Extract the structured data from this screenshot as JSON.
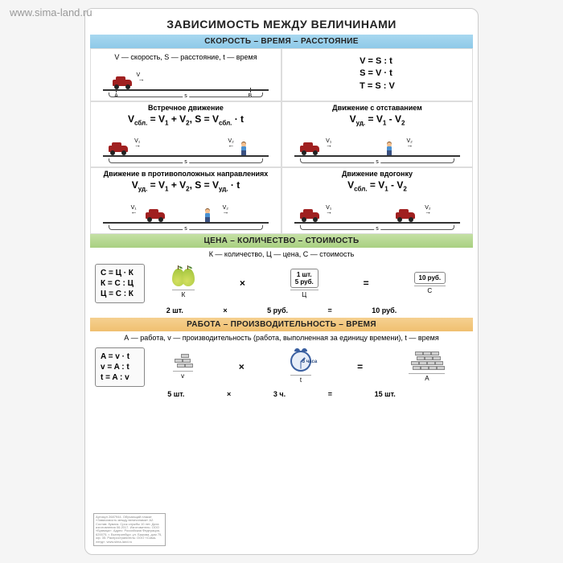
{
  "watermark": "www.sima-land.ru",
  "title": "ЗАВИСИМОСТЬ МЕЖДУ ВЕЛИЧИНАМИ",
  "section1": {
    "band": "СКОРОСТЬ – ВРЕМЯ – РАССТОЯНИЕ",
    "defs": "V — скорость,  S — расстояние, t — время",
    "basic_formulas": [
      "V  =  S : t",
      "S  =  V · t",
      "T  =  S : V"
    ],
    "pointA": "A",
    "pointB": "B",
    "s_label": "s",
    "cells": [
      {
        "title": "Встречное движение",
        "formula_html": "V<sub>сбл.</sub> = V<sub>1</sub> + V<sub>2</sub>,   S = V<sub>сбл.</sub> · t"
      },
      {
        "title": "Движение с отставанием",
        "formula_html": "V<sub>уд.</sub> = V<sub>1</sub> - V<sub>2</sub>"
      },
      {
        "title": "Движение в противоположных направлениях",
        "formula_html": "V<sub>уд.</sub> = V<sub>1</sub> + V<sub>2</sub>,   S = V<sub>уд.</sub> · t"
      },
      {
        "title": "Движение вдогонку",
        "formula_html": "V<sub>сбл.</sub> = V<sub>1</sub> - V<sub>2</sub>"
      }
    ],
    "v1": "V₁",
    "v2": "V₂",
    "colors": {
      "car": "#a02020",
      "ground": "#333333"
    }
  },
  "section2": {
    "band": "ЦЕНА – КОЛИЧЕСТВО – СТОИМОСТЬ",
    "defs": "К — количество, Ц — цена, С — стоимость",
    "eq_box": [
      "С = Ц · К",
      "К = С : Ц",
      "Ц = С : К"
    ],
    "price_tag": "1 шт.\n5 руб.",
    "result_tag": "10 руб.",
    "labels": {
      "K": "К",
      "C_price": "Ц",
      "C_cost": "С"
    },
    "values": {
      "k": "2 шт.",
      "op1": "×",
      "price": "5 руб.",
      "op2": "=",
      "cost": "10 руб."
    }
  },
  "section3": {
    "band": "РАБОТА – ПРОИЗВОДИТЕЛЬНОСТЬ – ВРЕМЯ",
    "defs": "А — работа, v — производительность (работа, выполненная за единицу времени), t — время",
    "eq_box": [
      "A = v · t",
      "v = A : t",
      "t = A : v"
    ],
    "clock_label": "3 часа",
    "labels": {
      "v": "v",
      "t": "t",
      "A": "A"
    },
    "values": {
      "v": "5 шт.",
      "op1": "×",
      "t": "3 ч.",
      "op2": "=",
      "A": "15 шт."
    }
  },
  "fineprint": "Артикул 2687944. Обучающий плакат «Зависимость между величинами» А2. Состав: бумага. Срок службы 10 лет. Дата изготовления 06.2017. Изготовитель: ООО «Буквица». Адрес: Российская Федерация, 620075, г. Екатеринбург, ул. Бажова, дом 75, оф. 35. Распространитель: ООО «Сима-ленд». www.sima-land.ru",
  "colors": {
    "band_blue": "#8ec9e8",
    "band_green": "#a8d080",
    "band_orange": "#f0c070",
    "background": "#ffffff"
  }
}
